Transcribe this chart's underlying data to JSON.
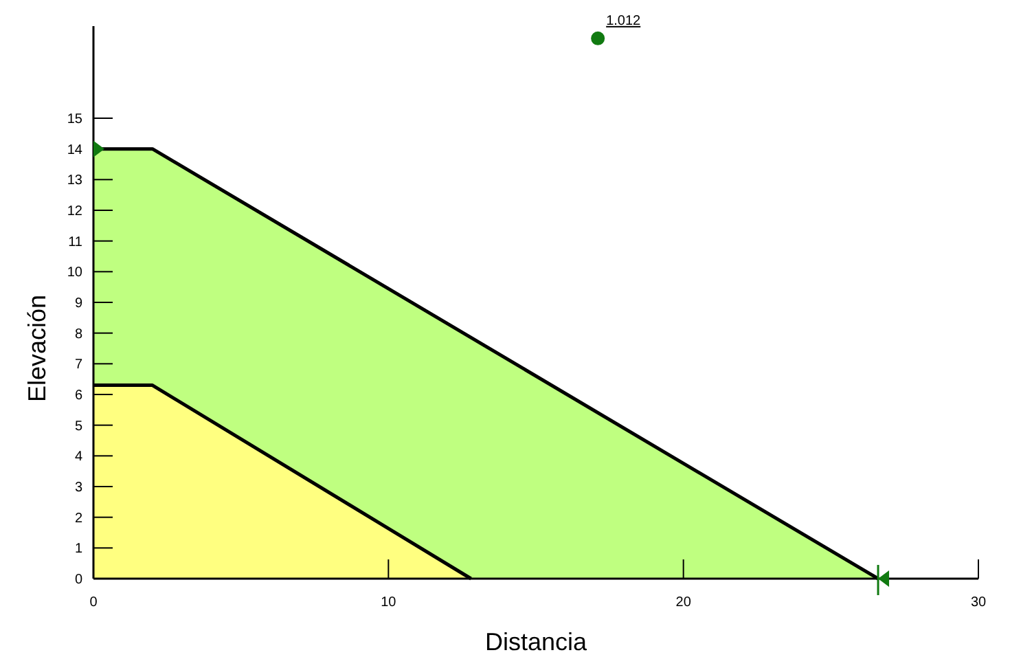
{
  "chart_data": {
    "type": "area",
    "xlabel": "Distancia",
    "ylabel": "Elevación",
    "xlim": [
      0,
      30
    ],
    "ylim": [
      0,
      18
    ],
    "xticks": [
      0,
      10,
      20,
      30
    ],
    "yticks": [
      0,
      1,
      2,
      3,
      4,
      5,
      6,
      7,
      8,
      9,
      10,
      11,
      12,
      13,
      14,
      15
    ],
    "grid": false,
    "series": [
      {
        "color": "#bfff80",
        "x": [
          0,
          2,
          26.6
        ],
        "values": [
          14,
          14,
          0
        ]
      },
      {
        "color": "#ffff80",
        "x": [
          0,
          2,
          12.8
        ],
        "values": [
          6.3,
          6.3,
          0
        ]
      },
      {
        "type": "scatter",
        "color": "#117a11",
        "marker": "circle",
        "x": [
          17.1
        ],
        "values": [
          17.6
        ]
      }
    ],
    "annotations": [
      {
        "text": "1.012",
        "x": 17.1,
        "y": 17.6
      }
    ]
  }
}
